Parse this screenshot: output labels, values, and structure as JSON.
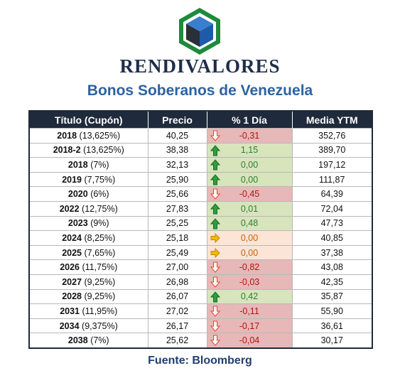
{
  "brand": {
    "name": "RENDIVALORES",
    "colors": {
      "hex_green": "#1e8a3c",
      "cube_blue": "#2f6db3",
      "cube_dark": "#2b2f36"
    }
  },
  "subtitle": "Bonos Soberanos de Venezuela",
  "table": {
    "headers": {
      "title": "Título (Cupón)",
      "price": "Precio",
      "change": "% 1 Día",
      "ytm": "Media YTM"
    },
    "rows": [
      {
        "year": "2018",
        "coupon": "(13,625%)",
        "price": "40,25",
        "change": "-0,31",
        "trend": "down",
        "ytm": "352,76"
      },
      {
        "year": "2018-2",
        "coupon": "(13,625%)",
        "price": "38,38",
        "change": "1,15",
        "trend": "up",
        "ytm": "389,70"
      },
      {
        "year": "2018",
        "coupon": "(7%)",
        "price": "32,13",
        "change": "0,00",
        "trend": "up",
        "ytm": "197,12"
      },
      {
        "year": "2019",
        "coupon": "(7,75%)",
        "price": "25,90",
        "change": "0,00",
        "trend": "up",
        "ytm": "111,87"
      },
      {
        "year": "2020",
        "coupon": "(6%)",
        "price": "25,66",
        "change": "-0,45",
        "trend": "down",
        "ytm": "64,39"
      },
      {
        "year": "2022",
        "coupon": "(12,75%)",
        "price": "27,83",
        "change": "0,01",
        "trend": "up",
        "ytm": "72,04"
      },
      {
        "year": "2023",
        "coupon": "(9%)",
        "price": "25,25",
        "change": "0,48",
        "trend": "up",
        "ytm": "47,73"
      },
      {
        "year": "2024",
        "coupon": "(8,25%)",
        "price": "25,18",
        "change": "0,00",
        "trend": "flat",
        "ytm": "40,85"
      },
      {
        "year": "2025",
        "coupon": "(7,65%)",
        "price": "25,49",
        "change": "0,00",
        "trend": "flat",
        "ytm": "37,38"
      },
      {
        "year": "2026",
        "coupon": "(11,75%)",
        "price": "27,00",
        "change": "-0,82",
        "trend": "down",
        "ytm": "43,08"
      },
      {
        "year": "2027",
        "coupon": "(9,25%)",
        "price": "26,98",
        "change": "-0,03",
        "trend": "down",
        "ytm": "42,35"
      },
      {
        "year": "2028",
        "coupon": "(9,25%)",
        "price": "26,07",
        "change": "0,42",
        "trend": "up",
        "ytm": "35,87"
      },
      {
        "year": "2031",
        "coupon": "(11,95%)",
        "price": "27,02",
        "change": "-0,11",
        "trend": "down",
        "ytm": "55,90"
      },
      {
        "year": "2034",
        "coupon": "(9,375%)",
        "price": "26,17",
        "change": "-0,17",
        "trend": "down",
        "ytm": "36,61"
      },
      {
        "year": "2038",
        "coupon": "(7%)",
        "price": "25,62",
        "change": "-0,04",
        "trend": "down",
        "ytm": "30,17"
      }
    ],
    "colors": {
      "header_bg": "#1f2a3c",
      "down_bg": "#e6b8b7",
      "up_bg": "#d8e4bc",
      "flat_bg": "#fce4d6",
      "down_arrow": "#e2442f",
      "up_arrow": "#2e9e3a",
      "flat_arrow": "#f5b800"
    }
  },
  "footer": "Fuente: Bloomberg"
}
